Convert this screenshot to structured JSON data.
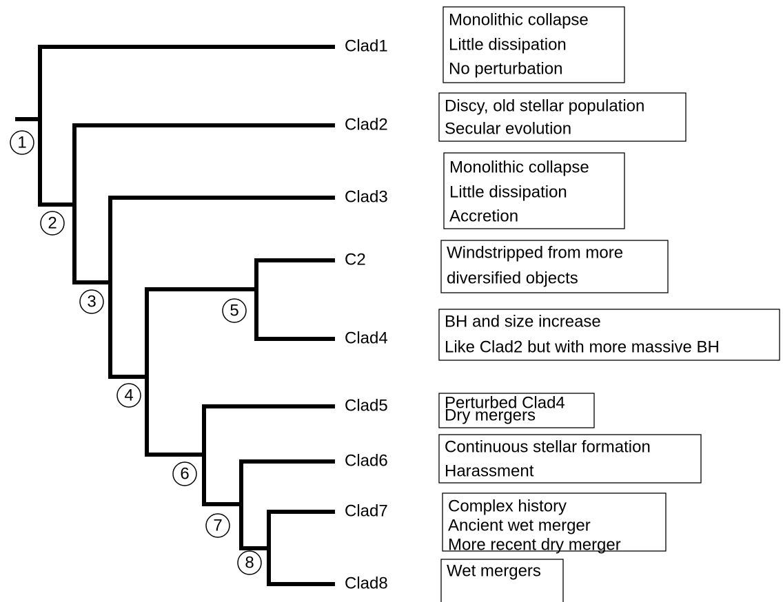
{
  "nodes": [
    {
      "label": "1"
    },
    {
      "label": "2"
    },
    {
      "label": "3"
    },
    {
      "label": "4"
    },
    {
      "label": "5"
    },
    {
      "label": "6"
    },
    {
      "label": "7"
    },
    {
      "label": "8"
    }
  ],
  "leaves": [
    {
      "label": "Clad1"
    },
    {
      "label": "Clad2"
    },
    {
      "label": "Clad3"
    },
    {
      "label": "C2"
    },
    {
      "label": "Clad4"
    },
    {
      "label": "Clad5"
    },
    {
      "label": "Clad6"
    },
    {
      "label": "Clad7"
    },
    {
      "label": "Clad8"
    }
  ],
  "notes": [
    {
      "lines": [
        "Monolithic collapse",
        "Little dissipation",
        "No perturbation"
      ]
    },
    {
      "lines": [
        "Discy, old stellar population",
        "Secular evolution"
      ]
    },
    {
      "lines": [
        "Monolithic collapse",
        "Little dissipation",
        "Accretion"
      ]
    },
    {
      "lines": [
        "Windstripped from more",
        "diversified objects"
      ]
    },
    {
      "lines": [
        "BH and size increase",
        "Like Clad2 but with more massive BH"
      ]
    },
    {
      "lines": [
        "Perturbed Clad4",
        "Dry mergers"
      ]
    },
    {
      "lines": [
        "Continuous stellar formation",
        "Harassment"
      ]
    },
    {
      "lines": [
        "Complex history",
        "Ancient wet merger",
        "More recent dry merger"
      ]
    },
    {
      "lines": [
        "Wet mergers"
      ]
    }
  ]
}
